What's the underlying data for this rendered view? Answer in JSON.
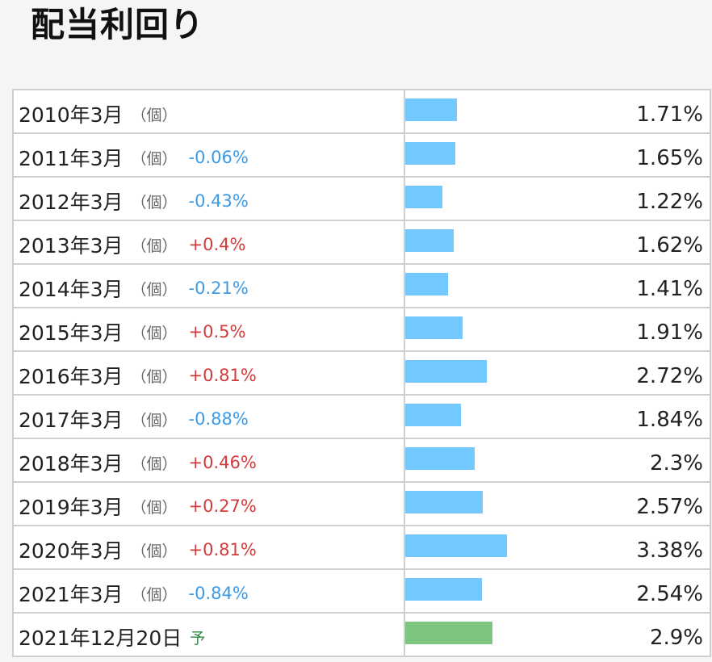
{
  "title": "配当利回り",
  "colors": {
    "actual_bar": "#72c8ff",
    "forecast_bar": "#7ec67e",
    "increase": "#d23b3b",
    "decrease": "#3d9be6"
  },
  "chart_data": {
    "type": "bar",
    "orientation": "horizontal",
    "rows": [
      {
        "period": "2010年3月",
        "unit": "（個）",
        "change": "",
        "value": 1.71,
        "value_label": "1.71%",
        "forecast": false
      },
      {
        "period": "2011年3月",
        "unit": "（個）",
        "change": "-0.06%",
        "value": 1.65,
        "value_label": "1.65%",
        "forecast": false
      },
      {
        "period": "2012年3月",
        "unit": "（個）",
        "change": "-0.43%",
        "value": 1.22,
        "value_label": "1.22%",
        "forecast": false
      },
      {
        "period": "2013年3月",
        "unit": "（個）",
        "change": "+0.4%",
        "value": 1.62,
        "value_label": "1.62%",
        "forecast": false
      },
      {
        "period": "2014年3月",
        "unit": "（個）",
        "change": "-0.21%",
        "value": 1.41,
        "value_label": "1.41%",
        "forecast": false
      },
      {
        "period": "2015年3月",
        "unit": "（個）",
        "change": "+0.5%",
        "value": 1.91,
        "value_label": "1.91%",
        "forecast": false
      },
      {
        "period": "2016年3月",
        "unit": "（個）",
        "change": "+0.81%",
        "value": 2.72,
        "value_label": "2.72%",
        "forecast": false
      },
      {
        "period": "2017年3月",
        "unit": "（個）",
        "change": "-0.88%",
        "value": 1.84,
        "value_label": "1.84%",
        "forecast": false
      },
      {
        "period": "2018年3月",
        "unit": "（個）",
        "change": "+0.46%",
        "value": 2.3,
        "value_label": "2.3%",
        "forecast": false
      },
      {
        "period": "2019年3月",
        "unit": "（個）",
        "change": "+0.27%",
        "value": 2.57,
        "value_label": "2.57%",
        "forecast": false
      },
      {
        "period": "2020年3月",
        "unit": "（個）",
        "change": "+0.81%",
        "value": 3.38,
        "value_label": "3.38%",
        "forecast": false
      },
      {
        "period": "2021年3月",
        "unit": "（個）",
        "change": "-0.84%",
        "value": 2.54,
        "value_label": "2.54%",
        "forecast": false
      },
      {
        "period": "2021年12月20日",
        "unit": "",
        "change": "",
        "forecast_mark": "予",
        "value": 2.9,
        "value_label": "2.9%",
        "forecast": true
      }
    ]
  }
}
